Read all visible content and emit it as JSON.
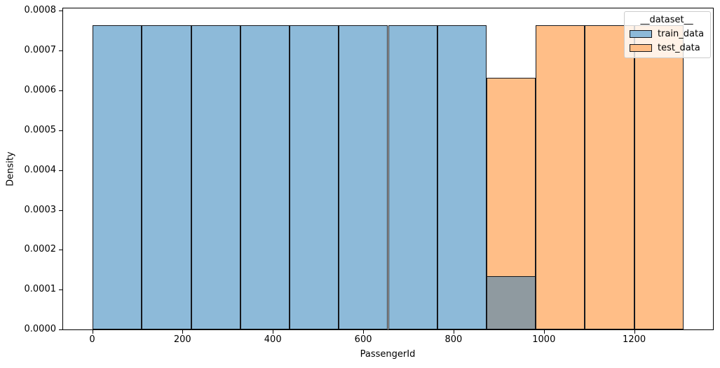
{
  "figure": {
    "background": "#ffffff"
  },
  "chart_data": {
    "type": "bar",
    "subtype": "histogram-density",
    "title": "",
    "xlabel": "PassengerId",
    "ylabel": "Density",
    "xlim": [
      -64.4,
      1374.4
    ],
    "ylim": [
      0,
      0.000806
    ],
    "grid": false,
    "bin_width": 109,
    "xticks": [
      {
        "value": 0,
        "label": "0"
      },
      {
        "value": 200,
        "label": "200"
      },
      {
        "value": 400,
        "label": "400"
      },
      {
        "value": 600,
        "label": "600"
      },
      {
        "value": 800,
        "label": "800"
      },
      {
        "value": 1000,
        "label": "1000"
      },
      {
        "value": 1200,
        "label": "1200"
      }
    ],
    "yticks": [
      {
        "value": 0.0,
        "label": "0.0000"
      },
      {
        "value": 0.0001,
        "label": "0.0001"
      },
      {
        "value": 0.0002,
        "label": "0.0002"
      },
      {
        "value": 0.0003,
        "label": "0.0003"
      },
      {
        "value": 0.0004,
        "label": "0.0004"
      },
      {
        "value": 0.0005,
        "label": "0.0005"
      },
      {
        "value": 0.0006,
        "label": "0.0006"
      },
      {
        "value": 0.0007,
        "label": "0.0007"
      },
      {
        "value": 0.0008,
        "label": "0.0008"
      }
    ],
    "series": [
      {
        "name": "train_data",
        "color": "#8dbad9",
        "edge_color": "#15171c",
        "bins": [
          {
            "x0": 1,
            "x1": 110,
            "density": 0.000764
          },
          {
            "x0": 110,
            "x1": 219,
            "density": 0.000764
          },
          {
            "x0": 219,
            "x1": 328,
            "density": 0.000764
          },
          {
            "x0": 328,
            "x1": 437,
            "density": 0.000764
          },
          {
            "x0": 437,
            "x1": 546,
            "density": 0.000764
          },
          {
            "x0": 546,
            "x1": 655,
            "density": 0.000764
          },
          {
            "x0": 655,
            "x1": 764,
            "density": 0.000764
          },
          {
            "x0": 764,
            "x1": 873,
            "density": 0.000764
          },
          {
            "x0": 873,
            "x1": 982,
            "density": 0.000133
          }
        ]
      },
      {
        "name": "test_data",
        "color": "#ffbe87",
        "edge_color": "#15171c",
        "bins": [
          {
            "x0": 873,
            "x1": 982,
            "density": 0.000631
          },
          {
            "x0": 982,
            "x1": 1091,
            "density": 0.000764
          },
          {
            "x0": 1091,
            "x1": 1200,
            "density": 0.000764
          },
          {
            "x0": 1200,
            "x1": 1309,
            "density": 0.000764
          }
        ]
      }
    ],
    "overlap": {
      "x0": 873,
      "x1": 982,
      "density": 0.000133,
      "color": "#8f9aa0",
      "note": "region where semi-transparent train and test bars overlap"
    },
    "legend": {
      "title": "__dataset__",
      "position": "upper right",
      "entries": [
        {
          "label": "train_data",
          "color": "#8dbad9"
        },
        {
          "label": "test_data",
          "color": "#ffbe87"
        }
      ]
    }
  }
}
